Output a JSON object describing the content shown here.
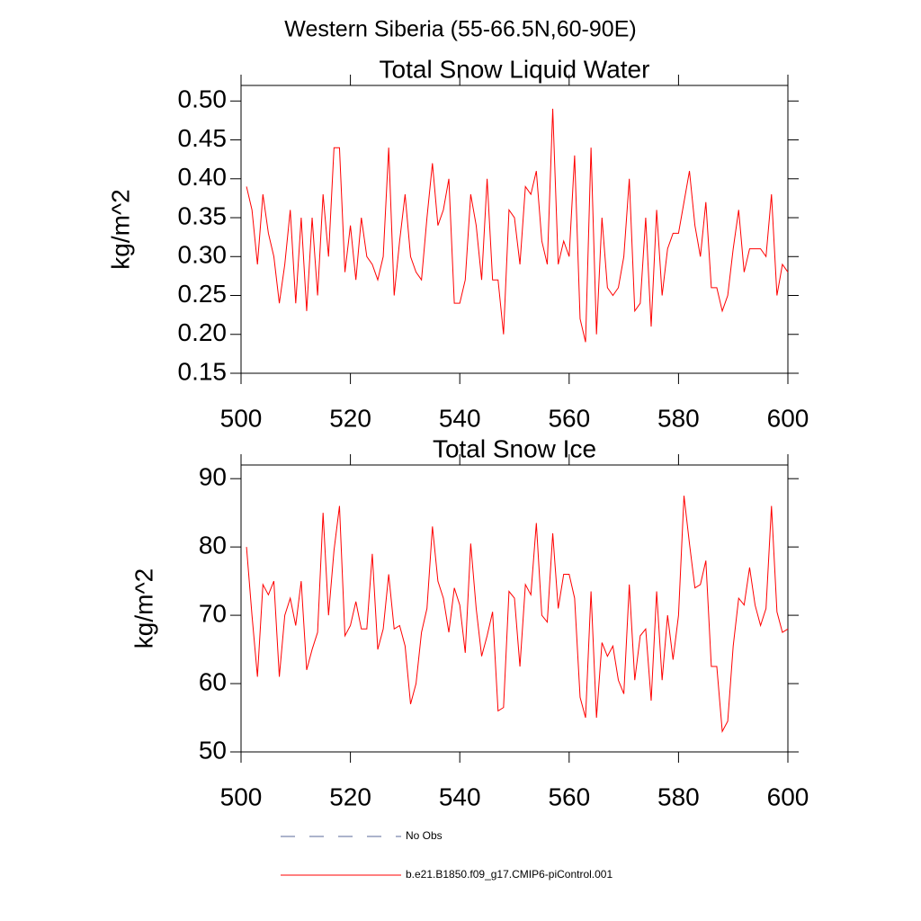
{
  "title": "Western Siberia (55-66.5N,60-90E)",
  "legend": [
    {
      "name": "No Obs",
      "color": "#5a6a9a",
      "style": "dashed"
    },
    {
      "name": "b.e21.B1850.f09_g17.CMIP6-piControl.001",
      "color": "#ff0000",
      "style": "solid"
    }
  ],
  "chart_data": [
    {
      "type": "line",
      "title": "Total Snow Liquid Water",
      "y_label": "kg/m^2",
      "x": [
        501,
        502,
        503,
        504,
        505,
        506,
        507,
        508,
        509,
        510,
        511,
        512,
        513,
        514,
        515,
        516,
        517,
        518,
        519,
        520,
        521,
        522,
        523,
        524,
        525,
        526,
        527,
        528,
        529,
        530,
        531,
        532,
        533,
        534,
        535,
        536,
        537,
        538,
        539,
        540,
        541,
        542,
        543,
        544,
        545,
        546,
        547,
        548,
        549,
        550,
        551,
        552,
        553,
        554,
        555,
        556,
        557,
        558,
        559,
        560,
        561,
        562,
        563,
        564,
        565,
        566,
        567,
        568,
        569,
        570,
        571,
        572,
        573,
        574,
        575,
        576,
        577,
        578,
        579,
        580,
        581,
        582,
        583,
        584,
        585,
        586,
        587,
        588,
        589,
        590,
        591,
        592,
        593,
        594,
        595,
        596,
        597,
        598,
        599,
        600
      ],
      "series": [
        {
          "color": "#ff0000",
          "values": [
            0.39,
            0.36,
            0.29,
            0.38,
            0.33,
            0.3,
            0.24,
            0.29,
            0.36,
            0.24,
            0.35,
            0.23,
            0.35,
            0.25,
            0.38,
            0.3,
            0.44,
            0.44,
            0.28,
            0.34,
            0.27,
            0.35,
            0.3,
            0.29,
            0.27,
            0.3,
            0.44,
            0.25,
            0.32,
            0.38,
            0.3,
            0.28,
            0.27,
            0.35,
            0.42,
            0.34,
            0.36,
            0.4,
            0.24,
            0.24,
            0.27,
            0.38,
            0.34,
            0.27,
            0.4,
            0.27,
            0.27,
            0.2,
            0.36,
            0.35,
            0.29,
            0.39,
            0.38,
            0.41,
            0.32,
            0.29,
            0.49,
            0.29,
            0.32,
            0.3,
            0.43,
            0.22,
            0.19,
            0.44,
            0.2,
            0.35,
            0.26,
            0.25,
            0.26,
            0.3,
            0.4,
            0.23,
            0.24,
            0.35,
            0.21,
            0.36,
            0.25,
            0.31,
            0.33,
            0.33,
            0.37,
            0.41,
            0.34,
            0.3,
            0.37,
            0.26,
            0.26,
            0.23,
            0.25,
            0.31,
            0.36,
            0.28,
            0.31,
            0.31,
            0.31,
            0.3,
            0.38,
            0.25,
            0.29,
            0.28
          ]
        }
      ],
      "xlim": [
        500,
        600
      ],
      "xticks": [
        500,
        520,
        540,
        560,
        580,
        600
      ],
      "ylim": [
        0.15,
        0.52
      ],
      "yticks": [
        0.15,
        {
          "value": 0.2,
          "label": "0.20"
        },
        0.25,
        {
          "value": 0.3,
          "label": "0.30"
        },
        0.35,
        {
          "value": 0.4,
          "label": "0.40"
        },
        0.45,
        {
          "value": 0.5,
          "label": "0.50"
        }
      ]
    },
    {
      "type": "line",
      "title": "Total Snow Ice",
      "y_label": "kg/m^2",
      "x": [
        501,
        502,
        503,
        504,
        505,
        506,
        507,
        508,
        509,
        510,
        511,
        512,
        513,
        514,
        515,
        516,
        517,
        518,
        519,
        520,
        521,
        522,
        523,
        524,
        525,
        526,
        527,
        528,
        529,
        530,
        531,
        532,
        533,
        534,
        535,
        536,
        537,
        538,
        539,
        540,
        541,
        542,
        543,
        544,
        545,
        546,
        547,
        548,
        549,
        550,
        551,
        552,
        553,
        554,
        555,
        556,
        557,
        558,
        559,
        560,
        561,
        562,
        563,
        564,
        565,
        566,
        567,
        568,
        569,
        570,
        571,
        572,
        573,
        574,
        575,
        576,
        577,
        578,
        579,
        580,
        581,
        582,
        583,
        584,
        585,
        586,
        587,
        588,
        589,
        590,
        591,
        592,
        593,
        594,
        595,
        596,
        597,
        598,
        599,
        600
      ],
      "series": [
        {
          "color": "#ff0000",
          "values": [
            80,
            70,
            61,
            74.5,
            73,
            75,
            61,
            70,
            72.5,
            68.5,
            75,
            62,
            65,
            67.5,
            85,
            70,
            79.5,
            86,
            67,
            68.5,
            72,
            68,
            68,
            79,
            65,
            68,
            76,
            68,
            68.5,
            65.5,
            57,
            60,
            67.5,
            71,
            83,
            75,
            72.5,
            67.5,
            74,
            71.5,
            64.5,
            80.5,
            71,
            64,
            67,
            70.5,
            56,
            56.5,
            73.5,
            72.5,
            62.5,
            74.5,
            73,
            83.5,
            70,
            69,
            82,
            71,
            76,
            76,
            72.5,
            58,
            55,
            73.5,
            55,
            66,
            64,
            65.5,
            60.5,
            58.5,
            74.5,
            60.5,
            67,
            68,
            57.5,
            73.5,
            60.5,
            70,
            63.5,
            70,
            87.5,
            80.5,
            74,
            74.5,
            78,
            62.5,
            62.5,
            53,
            54.5,
            65.5,
            72.5,
            71.5,
            77,
            71.5,
            68.5,
            71,
            86,
            70.5,
            67.5,
            68
          ]
        }
      ],
      "xlim": [
        500,
        600
      ],
      "xticks": [
        500,
        520,
        540,
        560,
        580,
        600
      ],
      "ylim": [
        50,
        92
      ],
      "yticks": [
        50,
        60,
        70,
        80,
        90
      ]
    }
  ]
}
